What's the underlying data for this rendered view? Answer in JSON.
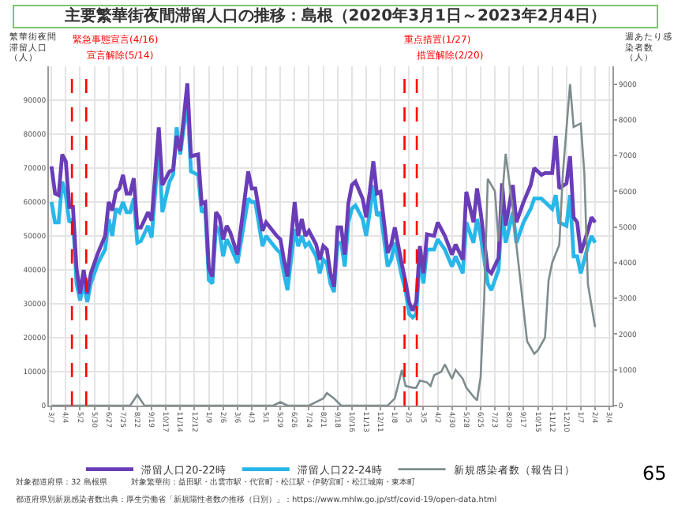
{
  "chart_data": {
    "type": "line",
    "title": "主要繁華街夜間滞留人口の推移：島根（2020年3月1日～2023年2月4日）",
    "ylabel": "繁華街夜間滞留人口（人）",
    "y2label": "週あたり感染者数（人）",
    "xlim": [
      "2020-03-02",
      "2023-03-10"
    ],
    "ylim": [
      0,
      100000
    ],
    "y2lim": [
      0,
      9500
    ],
    "yticks": [
      0,
      10000,
      20000,
      30000,
      40000,
      50000,
      60000,
      70000,
      80000,
      90000
    ],
    "y2ticks": [
      0,
      1000,
      2000,
      3000,
      4000,
      5000,
      6000,
      7000,
      8000,
      9000
    ],
    "xticks": [
      {
        "value": "2020-03-07",
        "label": "3/7"
      },
      {
        "value": "2020-04-04",
        "label": "4/4"
      },
      {
        "value": "2020-05-02",
        "label": "5/2"
      },
      {
        "value": "2020-05-30",
        "label": "5/30"
      },
      {
        "value": "2020-06-27",
        "label": "6/27"
      },
      {
        "value": "2020-07-25",
        "label": "7/25"
      },
      {
        "value": "2020-08-22",
        "label": "8/22"
      },
      {
        "value": "2020-09-19",
        "label": "9/19"
      },
      {
        "value": "2020-10-17",
        "label": "10/17"
      },
      {
        "value": "2020-11-14",
        "label": "11/14"
      },
      {
        "value": "2020-12-12",
        "label": "12/12"
      },
      {
        "value": "2021-01-09",
        "label": "1/9"
      },
      {
        "value": "2021-02-06",
        "label": "2/6"
      },
      {
        "value": "2021-03-06",
        "label": "3/6"
      },
      {
        "value": "2021-04-03",
        "label": "4/3"
      },
      {
        "value": "2021-05-01",
        "label": "5/1"
      },
      {
        "value": "2021-05-29",
        "label": "5/29"
      },
      {
        "value": "2021-06-26",
        "label": "6/26"
      },
      {
        "value": "2021-07-24",
        "label": "7/24"
      },
      {
        "value": "2021-08-21",
        "label": "8/21"
      },
      {
        "value": "2021-09-18",
        "label": "9/18"
      },
      {
        "value": "2021-10-16",
        "label": "10/16"
      },
      {
        "value": "2021-11-13",
        "label": "11/13"
      },
      {
        "value": "2021-12-11",
        "label": "12/11"
      },
      {
        "value": "2022-01-08",
        "label": "1/8"
      },
      {
        "value": "2022-02-05",
        "label": "2/5"
      },
      {
        "value": "2022-03-05",
        "label": "3/5"
      },
      {
        "value": "2022-04-02",
        "label": "4/2"
      },
      {
        "value": "2022-04-30",
        "label": "4/30"
      },
      {
        "value": "2022-05-28",
        "label": "5/28"
      },
      {
        "value": "2022-06-25",
        "label": "6/25"
      },
      {
        "value": "2022-07-23",
        "label": "7/23"
      },
      {
        "value": "2022-08-20",
        "label": "8/20"
      },
      {
        "value": "2022-09-17",
        "label": "9/17"
      },
      {
        "value": "2022-10-15",
        "label": "10/15"
      },
      {
        "value": "2022-11-12",
        "label": "11/12"
      },
      {
        "value": "2022-12-10",
        "label": "12/10"
      },
      {
        "value": "2023-01-07",
        "label": "1/7"
      },
      {
        "value": "2023-02-04",
        "label": "2/4"
      },
      {
        "value": "2023-03-04",
        "label": "3/4"
      }
    ],
    "x": [
      "2020-03-07",
      "2020-03-14",
      "2020-03-21",
      "2020-03-28",
      "2020-04-04",
      "2020-04-11",
      "2020-04-18",
      "2020-04-25",
      "2020-05-02",
      "2020-05-09",
      "2020-05-16",
      "2020-05-23",
      "2020-06-06",
      "2020-06-20",
      "2020-06-27",
      "2020-07-04",
      "2020-07-11",
      "2020-07-18",
      "2020-07-25",
      "2020-08-01",
      "2020-08-08",
      "2020-08-15",
      "2020-08-22",
      "2020-08-29",
      "2020-09-12",
      "2020-09-19",
      "2020-10-03",
      "2020-10-10",
      "2020-10-24",
      "2020-10-31",
      "2020-11-07",
      "2020-11-14",
      "2020-11-28",
      "2020-12-05",
      "2020-12-19",
      "2020-12-26",
      "2021-01-02",
      "2021-01-09",
      "2021-01-16",
      "2021-01-23",
      "2021-01-30",
      "2021-02-06",
      "2021-02-13",
      "2021-02-20",
      "2021-03-06",
      "2021-03-27",
      "2021-04-03",
      "2021-04-10",
      "2021-04-24",
      "2021-05-01",
      "2021-05-22",
      "2021-05-29",
      "2021-06-05",
      "2021-06-12",
      "2021-06-26",
      "2021-07-03",
      "2021-07-10",
      "2021-07-17",
      "2021-07-24",
      "2021-08-07",
      "2021-08-14",
      "2021-08-21",
      "2021-08-28",
      "2021-09-04",
      "2021-09-11",
      "2021-09-18",
      "2021-09-25",
      "2021-10-02",
      "2021-10-09",
      "2021-10-16",
      "2021-10-23",
      "2021-11-06",
      "2021-11-13",
      "2021-11-20",
      "2021-11-27",
      "2021-12-04",
      "2021-12-11",
      "2021-12-25",
      "2022-01-01",
      "2022-01-08",
      "2022-01-22",
      "2022-01-29",
      "2022-02-05",
      "2022-02-12",
      "2022-02-19",
      "2022-02-26",
      "2022-03-05",
      "2022-03-12",
      "2022-03-26",
      "2022-04-02",
      "2022-04-16",
      "2022-04-30",
      "2022-05-07",
      "2022-05-21",
      "2022-05-28",
      "2022-06-11",
      "2022-06-18",
      "2022-06-25",
      "2022-07-09",
      "2022-07-16",
      "2022-07-30",
      "2022-08-06",
      "2022-08-13",
      "2022-08-27",
      "2022-09-03",
      "2022-09-17",
      "2022-10-01",
      "2022-10-08",
      "2022-10-22",
      "2022-10-29",
      "2022-11-12",
      "2022-11-19",
      "2022-11-26",
      "2022-12-10",
      "2022-12-17",
      "2022-12-24",
      "2022-12-31",
      "2023-01-07",
      "2023-01-21",
      "2023-01-28",
      "2023-02-04"
    ],
    "series": [
      {
        "name": "滞留人口20-22時",
        "color": "#6a3db8",
        "values": [
          70500,
          62500,
          62000,
          74000,
          72000,
          58500,
          58500,
          40500,
          33000,
          40000,
          33000,
          39000,
          45000,
          50000,
          60000,
          57500,
          63000,
          64000,
          68000,
          62500,
          62500,
          67000,
          52500,
          52500,
          57000,
          54500,
          82000,
          65000,
          69000,
          69500,
          79500,
          75000,
          95000,
          73500,
          74000,
          59500,
          60000,
          40500,
          38000,
          57000,
          55500,
          49000,
          53000,
          51000,
          44500,
          69000,
          64000,
          64000,
          51500,
          54000,
          50000,
          49000,
          43000,
          38000,
          60000,
          50000,
          55000,
          50000,
          51500,
          47500,
          43000,
          47000,
          46000,
          39000,
          35000,
          52500,
          52500,
          44500,
          59500,
          65000,
          66000,
          61000,
          55500,
          63000,
          72000,
          62500,
          63000,
          45000,
          47500,
          52500,
          41500,
          36500,
          30500,
          28000,
          30500,
          47000,
          39000,
          50500,
          50000,
          54000,
          50000,
          44500,
          47500,
          43000,
          63000,
          54000,
          64000,
          57000,
          40000,
          39000,
          43500,
          65500,
          53000,
          65000,
          54000,
          60000,
          65000,
          70000,
          68000,
          68500,
          68500,
          79500,
          64000,
          65500,
          73500,
          55500,
          54000,
          45000,
          51500,
          55500,
          54000
        ]
      },
      {
        "name": "滞留人口22-24時",
        "color": "#29b6e8",
        "values": [
          60000,
          54000,
          54000,
          66000,
          62000,
          54000,
          55000,
          36000,
          31000,
          36000,
          30500,
          36000,
          42000,
          46000,
          55000,
          50000,
          58000,
          57000,
          60000,
          57000,
          57000,
          61000,
          48000,
          48500,
          53000,
          49500,
          76000,
          57000,
          66000,
          68000,
          82000,
          74000,
          90000,
          69000,
          68000,
          57000,
          58000,
          37000,
          36000,
          53000,
          51000,
          44000,
          49000,
          47000,
          42000,
          61000,
          60000,
          60000,
          47000,
          50000,
          46000,
          45000,
          39000,
          34000,
          52000,
          47000,
          50000,
          47000,
          48000,
          44000,
          39000,
          43000,
          42000,
          36000,
          33500,
          48000,
          48000,
          41000,
          54000,
          58000,
          59000,
          55000,
          50000,
          57000,
          65000,
          56000,
          57000,
          41000,
          43000,
          48000,
          38000,
          34000,
          27000,
          26000,
          27000,
          44000,
          36000,
          46000,
          46000,
          49000,
          46000,
          41000,
          44000,
          39000,
          54000,
          48000,
          55000,
          50000,
          36000,
          34000,
          40000,
          57000,
          48000,
          57000,
          48000,
          54000,
          58000,
          61000,
          61000,
          60000,
          58000,
          62000,
          54000,
          53000,
          62000,
          44000,
          44000,
          39000,
          47000,
          50000,
          48000
        ]
      },
      {
        "name": "新規感染者数（報告日）",
        "color": "#7f8c8d",
        "type": "line",
        "axis": "y2",
        "x": [
          "2020-03-07",
          "2020-08-08",
          "2020-08-22",
          "2020-09-05",
          "2021-05-15",
          "2021-05-29",
          "2021-06-12",
          "2021-07-24",
          "2021-08-21",
          "2021-08-28",
          "2021-09-11",
          "2021-09-25",
          "2021-12-25",
          "2022-01-08",
          "2022-01-22",
          "2022-01-29",
          "2022-02-12",
          "2022-02-19",
          "2022-02-26",
          "2022-03-12",
          "2022-03-19",
          "2022-03-26",
          "2022-04-09",
          "2022-04-16",
          "2022-04-30",
          "2022-05-07",
          "2022-05-21",
          "2022-05-28",
          "2022-06-11",
          "2022-06-18",
          "2022-06-25",
          "2022-07-02",
          "2022-07-09",
          "2022-07-23",
          "2022-07-30",
          "2022-08-13",
          "2022-08-27",
          "2022-09-03",
          "2022-09-17",
          "2022-09-24",
          "2022-10-08",
          "2022-10-15",
          "2022-10-29",
          "2022-11-05",
          "2022-11-12",
          "2022-11-26",
          "2022-12-03",
          "2022-12-17",
          "2022-12-24",
          "2023-01-07",
          "2023-01-14",
          "2023-01-21",
          "2023-02-04"
        ],
        "values": [
          0,
          0,
          300,
          0,
          0,
          100,
          0,
          0,
          200,
          350,
          200,
          0,
          0,
          200,
          1000,
          550,
          500,
          500,
          700,
          650,
          550,
          850,
          950,
          1150,
          750,
          1000,
          750,
          500,
          250,
          150,
          800,
          3000,
          6350,
          6000,
          4600,
          7050,
          5500,
          4500,
          2700,
          1800,
          1450,
          1550,
          1900,
          3500,
          4000,
          4500,
          6500,
          9000,
          7800,
          7900,
          6500,
          3400,
          2200
        ]
      }
    ],
    "ref_lines": [
      {
        "axis": "x",
        "value": "2020-04-16",
        "label": "緊急事態宣言(4/16)",
        "color": "#ff0000",
        "line_style": "dashed"
      },
      {
        "axis": "x",
        "value": "2020-05-14",
        "label": "宣言解除(5/14)",
        "color": "#ff0000",
        "line_style": "dashed"
      },
      {
        "axis": "x",
        "value": "2022-01-27",
        "label": "重点措置(1/27)",
        "color": "#ff0000",
        "line_style": "dashed"
      },
      {
        "axis": "x",
        "value": "2022-02-20",
        "label": "措置解除(2/20)",
        "color": "#ff0000",
        "line_style": "dashed"
      }
    ],
    "annotations": [
      "対象都道府県：32 島根県",
      "対象繁華街：益田駅・出雲市駅・代官町・松江駅・伊勢宮町・松江城南・東本町",
      "都道府県別新規感染者数出典：厚生労働省「新規陽性者数の推移（日別）」：https://www.mhlw.go.jp/stf/covid-19/open-data.html",
      "65"
    ],
    "grid": true,
    "legend": "bottom",
    "marker": "none",
    "line_style": "solid"
  }
}
